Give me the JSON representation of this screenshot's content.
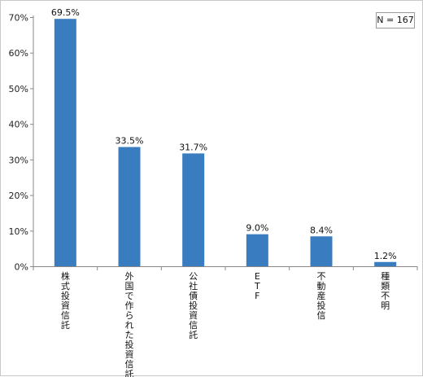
{
  "chart_data": {
    "type": "bar",
    "categories": [
      "株式投資信託",
      "外国で作られた投資信託",
      "公社債投資信託",
      "ETF",
      "不動産投信",
      "種類不明"
    ],
    "values": [
      69.5,
      33.5,
      31.7,
      9.0,
      8.4,
      1.2
    ],
    "data_labels": [
      "69.5%",
      "33.5%",
      "31.7%",
      "9.0%",
      "8.4%",
      "1.2%"
    ],
    "ylim": [
      0,
      70
    ],
    "yticks": [
      0,
      10,
      20,
      30,
      40,
      50,
      60,
      70
    ],
    "ytick_labels": [
      "0%",
      "10%",
      "20%",
      "30%",
      "40%",
      "50%",
      "60%",
      "70%"
    ],
    "bar_color": "#3a7cc0",
    "grid": false,
    "note": "N = 167",
    "note_placement": "top-right"
  }
}
